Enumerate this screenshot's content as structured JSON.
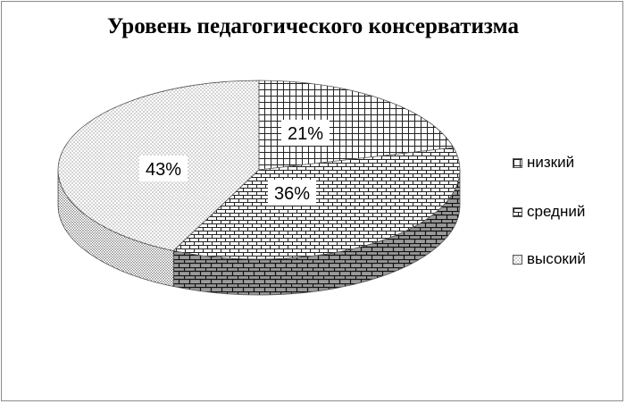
{
  "chart_data": {
    "type": "pie",
    "title": "Уровень педагогического консерватизма",
    "categories": [
      "низкий",
      "средний",
      "высокий"
    ],
    "values": [
      21,
      36,
      43
    ],
    "data_labels": [
      "21%",
      "36%",
      "43%"
    ],
    "legend_placement": "right",
    "three_d": true
  },
  "legend": {
    "items": [
      {
        "label": "низкий",
        "pattern": "grid"
      },
      {
        "label": "средний",
        "pattern": "brick"
      },
      {
        "label": "высокий",
        "pattern": "dots"
      }
    ]
  }
}
